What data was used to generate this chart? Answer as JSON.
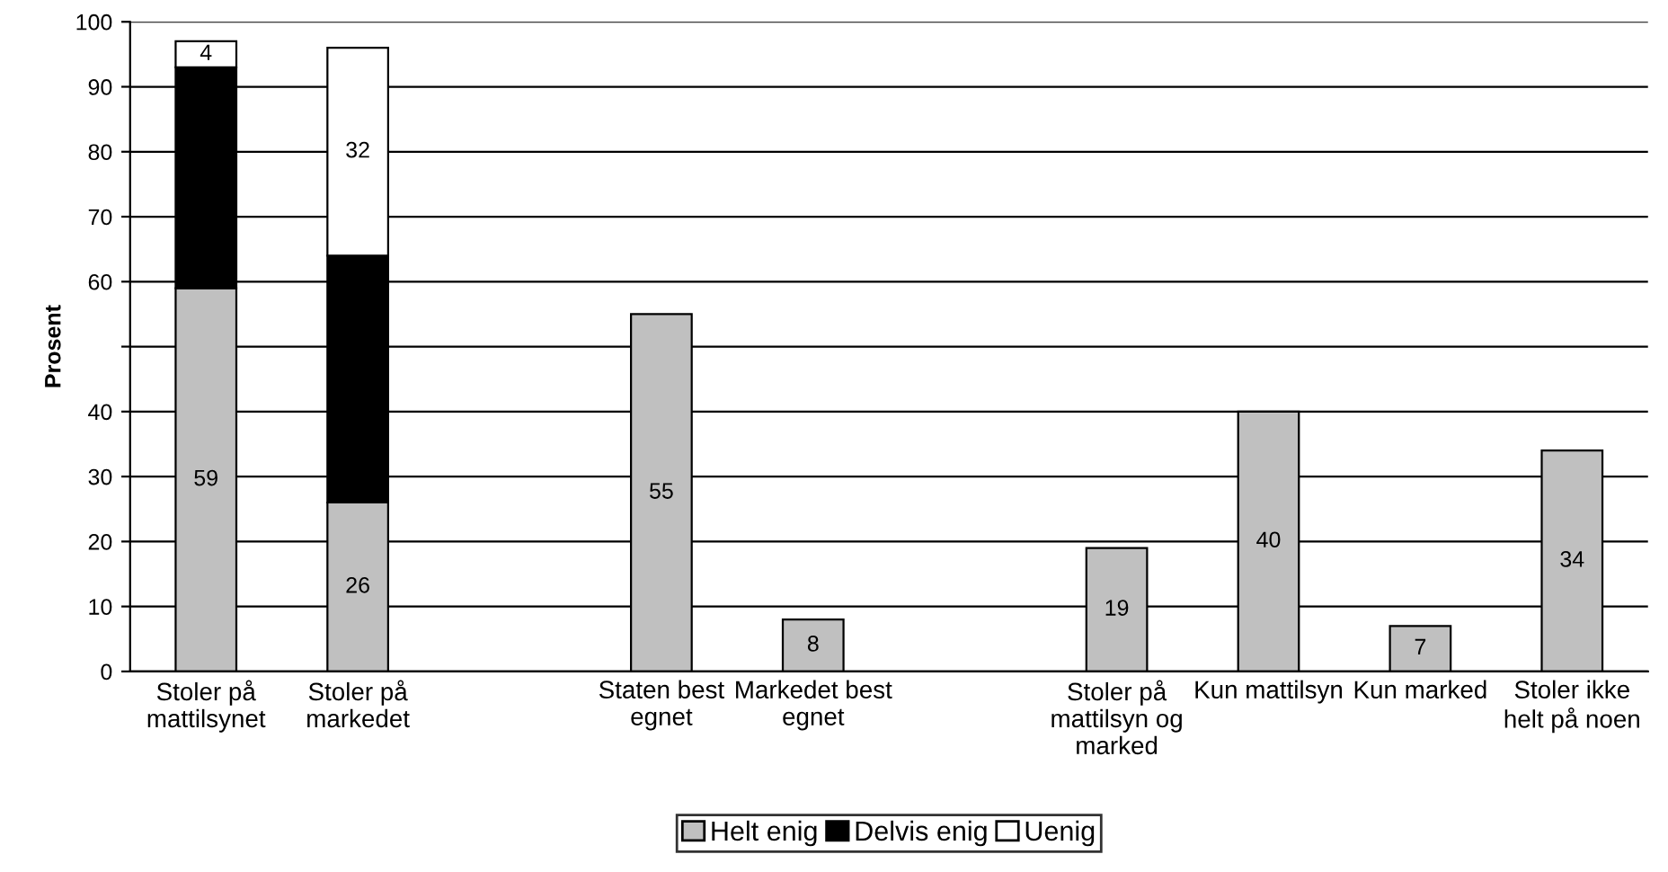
{
  "chart_data": {
    "type": "bar",
    "stacked": true,
    "ylabel": "Prosent",
    "categories": [
      "Stoler på mattilsynet",
      "Stoler på markedet",
      null,
      "Staten best egnet",
      "Markedet best egnet",
      null,
      "Stoler på mattilsyn og marked",
      "Kun mattilsyn",
      "Kun marked",
      "Stoler ikke helt på noen"
    ],
    "series": [
      {
        "name": "Helt enig",
        "color": "#c0c0c0",
        "values": [
          59,
          26,
          null,
          55,
          8,
          null,
          19,
          40,
          7,
          34
        ],
        "value_labels": [
          "59",
          "26",
          null,
          "55",
          "8",
          null,
          "19",
          "40",
          "7",
          "34"
        ]
      },
      {
        "name": "Delvis enig",
        "color": "#000000",
        "values": [
          34,
          38,
          null,
          null,
          null,
          null,
          null,
          null,
          null,
          null
        ]
      },
      {
        "name": "Uenig",
        "color": "#ffffff",
        "values": [
          4,
          32,
          null,
          null,
          null,
          null,
          null,
          null,
          null,
          null
        ],
        "value_labels": [
          "4",
          "32",
          null,
          null,
          null,
          null,
          null,
          null,
          null,
          null
        ]
      }
    ],
    "ylim": [
      0,
      100
    ],
    "yticks": [
      0,
      10,
      20,
      30,
      40,
      {
        "value": 50,
        "label": null
      },
      60,
      70,
      80,
      90,
      100
    ],
    "grid": "y",
    "legend": "bottom"
  }
}
